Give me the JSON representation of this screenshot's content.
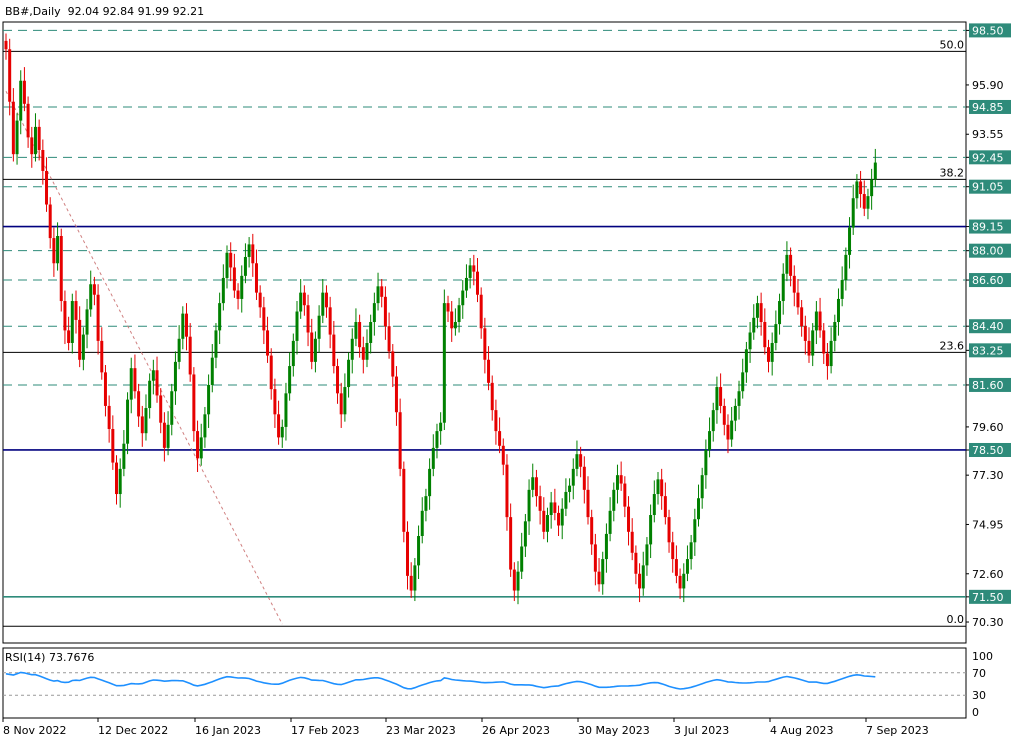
{
  "header": {
    "symbol": "BB#,Daily",
    "ohlc": "92.04 92.84 91.99 92.21"
  },
  "rsi": {
    "label": "RSI(14) 73.7676",
    "levels": [
      100,
      70,
      30,
      0
    ],
    "line_color": "#1e90ff"
  },
  "colors": {
    "up": "#008000",
    "down": "#e60000",
    "grid_dash": "#2e8b7a",
    "horizontal_main": "#00007f",
    "support": "#2e8b7a",
    "fib": "#000000",
    "trendline": "#d08080"
  },
  "chart_data": {
    "type": "candlestick",
    "title": "BB#,Daily",
    "ylim": [
      69.3,
      98.9
    ],
    "y_ticks": [
      "98.50",
      "95.90",
      "94.85",
      "93.55",
      "92.45",
      "91.05",
      "89.15",
      "88.00",
      "86.60",
      "84.40",
      "83.25",
      "81.60",
      "79.60",
      "78.50",
      "77.30",
      "74.95",
      "72.60",
      "71.50",
      "70.30"
    ],
    "price_labels_highlighted": [
      "98.50",
      "94.85",
      "92.45",
      "91.05",
      "89.15",
      "88.00",
      "86.60",
      "84.40",
      "83.25",
      "81.60",
      "78.50",
      "71.50"
    ],
    "x_tick_labels": [
      "8 Nov 2022",
      "12 Dec 2022",
      "16 Jan 2023",
      "17 Feb 2023",
      "23 Mar 2023",
      "26 Apr 2023",
      "30 May 2023",
      "3 Jul 2023",
      "4 Aug 2023",
      "7 Sep 2023"
    ],
    "dashed_levels": [
      98.5,
      94.85,
      92.45,
      91.05,
      88.0,
      86.6,
      84.4,
      81.6
    ],
    "solid_levels": [
      {
        "value": 89.15,
        "color": "#00007f"
      },
      {
        "value": 78.5,
        "color": "#00007f"
      },
      {
        "value": 71.5,
        "color": "#2e8b7a"
      }
    ],
    "fibonacci": [
      {
        "label": "50.0",
        "value": 97.5
      },
      {
        "label": "38.2",
        "value": 91.4
      },
      {
        "label": "23.6",
        "value": 83.15
      },
      {
        "label": "0.0",
        "value": 70.1
      }
    ],
    "trendline": {
      "start": [
        0,
        95.6
      ],
      "end": [
        75,
        70.2
      ]
    },
    "closes": [
      97.6,
      95.1,
      92.6,
      94.2,
      96.1,
      95.0,
      93.4,
      92.6,
      93.9,
      92.8,
      91.8,
      90.2,
      88.6,
      87.4,
      88.7,
      85.6,
      84.2,
      83.6,
      85.6,
      84.7,
      82.8,
      84.0,
      85.2,
      86.4,
      85.9,
      83.7,
      82.2,
      80.6,
      79.5,
      77.9,
      76.4,
      77.6,
      78.8,
      80.9,
      82.4,
      81.3,
      80.1,
      79.3,
      80.5,
      81.8,
      82.3,
      81.1,
      79.8,
      78.6,
      79.7,
      81.3,
      82.7,
      83.8,
      85.0,
      83.9,
      82.1,
      79.4,
      78.1,
      79.1,
      80.2,
      81.6,
      82.9,
      84.2,
      85.5,
      86.7,
      87.9,
      87.2,
      86.1,
      85.7,
      86.8,
      87.7,
      88.3,
      87.4,
      86.0,
      85.3,
      84.2,
      83.0,
      81.4,
      80.2,
      79.1,
      79.6,
      81.2,
      82.5,
      83.7,
      85.1,
      86.0,
      85.4,
      84.1,
      82.7,
      83.8,
      84.9,
      86.0,
      85.3,
      84.0,
      82.5,
      81.2,
      80.2,
      81.5,
      82.8,
      83.8,
      84.6,
      83.4,
      82.8,
      83.6,
      84.6,
      85.5,
      86.3,
      85.8,
      84.4,
      83.2,
      82.0,
      80.3,
      77.6,
      74.6,
      72.5,
      71.8,
      73.0,
      74.4,
      75.6,
      76.3,
      77.6,
      78.6,
      79.4,
      79.8,
      85.5,
      85.1,
      84.3,
      84.6,
      85.4,
      86.1,
      86.7,
      87.3,
      87.0,
      85.9,
      84.3,
      82.8,
      81.7,
      80.4,
      79.4,
      78.7,
      77.8,
      75.3,
      72.8,
      71.8,
      72.7,
      73.9,
      75.1,
      76.6,
      77.2,
      76.3,
      75.6,
      74.6,
      75.4,
      76.0,
      75.5,
      74.9,
      75.7,
      76.5,
      76.8,
      77.6,
      78.3,
      77.7,
      76.6,
      75.3,
      74.0,
      72.7,
      72.1,
      73.3,
      74.5,
      75.6,
      76.6,
      77.3,
      76.9,
      75.8,
      74.6,
      73.6,
      72.6,
      71.9,
      73.0,
      74.0,
      75.4,
      76.4,
      77.1,
      76.3,
      75.3,
      74.1,
      73.3,
      72.5,
      71.9,
      72.6,
      73.3,
      74.1,
      75.2,
      76.2,
      77.3,
      78.5,
      79.4,
      80.4,
      81.5,
      80.6,
      79.7,
      79.0,
      79.9,
      80.6,
      81.3,
      82.2,
      83.3,
      84.1,
      84.8,
      85.5,
      84.6,
      83.4,
      82.7,
      83.6,
      84.5,
      85.6,
      86.9,
      87.8,
      86.8,
      86.0,
      85.3,
      84.4,
      83.7,
      83.0,
      84.2,
      85.1,
      84.2,
      83.1,
      82.5,
      83.7,
      84.6,
      85.7,
      86.6,
      87.8,
      89.1,
      90.5,
      91.3,
      90.7,
      90.0,
      90.6,
      91.4,
      92.2
    ]
  }
}
